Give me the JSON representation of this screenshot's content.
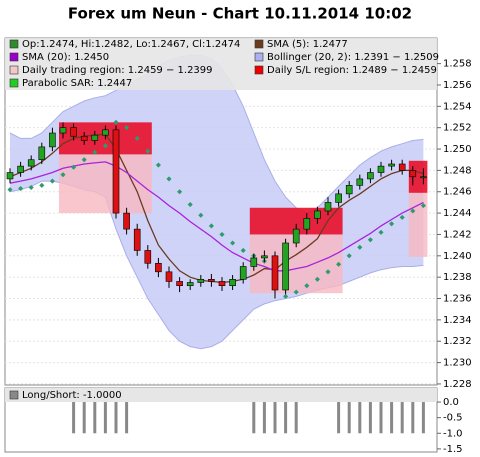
{
  "chart_data": {
    "type": "candlestick",
    "title": "Forex um Neun - Chart 10.11.2014 10:02",
    "ylim": [
      1.2279,
      1.2604
    ],
    "yticks": [
      1.228,
      {
        "value": 1.23,
        "label": "1.230"
      },
      1.232,
      1.234,
      1.236,
      1.238,
      {
        "value": 1.24,
        "label": "1.240"
      },
      1.242,
      1.244,
      1.246,
      1.248,
      {
        "value": 1.25,
        "label": "1.250"
      },
      1.252,
      1.254,
      1.256,
      1.258
    ],
    "legend": [
      {
        "label": "Op:1.2474, Hi:1.2482, Lo:1.2467, Cl:1.2474",
        "color": "#2e8b2e"
      },
      {
        "label": "SMA (5): 1.2477",
        "color": "#6b3a1e"
      },
      {
        "label": "SMA (20): 1.2450",
        "color": "#9900cc"
      },
      {
        "label": "Bollinger (20, 2): 1.2391 − 1.2509",
        "color": "#aab0f0"
      },
      {
        "label": "Daily trading region: 1.2459 − 1.2399",
        "color": "#f5c8c8"
      },
      {
        "label": "Daily S/L region: 1.2489 − 1.2459",
        "color": "#ee0000"
      },
      {
        "label": "Parabolic SAR: 1.2447",
        "color": "#22cc22"
      }
    ],
    "up_color": "#22a322",
    "down_color": "#dd1111",
    "open": [
      1.2472,
      1.2478,
      1.2484,
      1.249,
      1.2502,
      1.2515,
      1.252,
      1.2512,
      1.2508,
      1.2513,
      1.2518,
      1.244,
      1.2425,
      1.2405,
      1.2393,
      1.2385,
      1.2376,
      1.2372,
      1.2375,
      1.2378,
      1.2376,
      1.2372,
      1.2378,
      1.239,
      1.2398,
      1.24,
      1.2368,
      1.2412,
      1.2425,
      1.2435,
      1.2442,
      1.245,
      1.2458,
      1.2466,
      1.2472,
      1.2478,
      1.2484,
      1.2486,
      1.248,
      1.2474
    ],
    "high": [
      1.2482,
      1.2488,
      1.2494,
      1.2506,
      1.252,
      1.2525,
      1.2524,
      1.2516,
      1.2517,
      1.2522,
      1.2522,
      1.2445,
      1.243,
      1.241,
      1.2398,
      1.239,
      1.238,
      1.2378,
      1.2382,
      1.2383,
      1.238,
      1.2382,
      1.2394,
      1.2402,
      1.2405,
      1.2404,
      1.2416,
      1.243,
      1.244,
      1.2446,
      1.2455,
      1.2462,
      1.247,
      1.2476,
      1.2482,
      1.2488,
      1.249,
      1.249,
      1.2484,
      1.2482
    ],
    "low": [
      1.2468,
      1.2474,
      1.248,
      1.2486,
      1.2498,
      1.251,
      1.2508,
      1.2504,
      1.2504,
      1.2509,
      1.2435,
      1.242,
      1.24,
      1.2388,
      1.238,
      1.237,
      1.2366,
      1.2368,
      1.2371,
      1.2371,
      1.2367,
      1.2368,
      1.2374,
      1.2386,
      1.2394,
      1.236,
      1.2364,
      1.2408,
      1.242,
      1.243,
      1.2438,
      1.2446,
      1.2454,
      1.2462,
      1.2468,
      1.2474,
      1.248,
      1.2476,
      1.2466,
      1.2467
    ],
    "close": [
      1.2478,
      1.2484,
      1.249,
      1.2502,
      1.2515,
      1.252,
      1.2512,
      1.2508,
      1.2513,
      1.2518,
      1.244,
      1.2425,
      1.2405,
      1.2393,
      1.2385,
      1.2376,
      1.2372,
      1.2375,
      1.2378,
      1.2376,
      1.2372,
      1.2378,
      1.239,
      1.2398,
      1.24,
      1.2368,
      1.2412,
      1.2425,
      1.2435,
      1.2442,
      1.245,
      1.2458,
      1.2466,
      1.2472,
      1.2478,
      1.2484,
      1.2486,
      1.248,
      1.2474,
      1.2474
    ],
    "lines": [
      {
        "name": "SMA (5)",
        "color": "#6b3a1e",
        "values": [
          1.2474,
          1.2478,
          1.2482,
          1.2488,
          1.2496,
          1.2505,
          1.251,
          1.2512,
          1.2513,
          1.2514,
          1.25,
          1.248,
          1.246,
          1.2433,
          1.241,
          1.2397,
          1.2386,
          1.238,
          1.2377,
          1.2376,
          1.2375,
          1.2376,
          1.2378,
          1.2382,
          1.2388,
          1.2387,
          1.2395,
          1.2401,
          1.2408,
          1.2416,
          1.2433,
          1.2445,
          1.2452,
          1.2458,
          1.2465,
          1.2472,
          1.2477,
          1.248,
          1.248,
          1.2477
        ]
      },
      {
        "name": "SMA (20)",
        "color": "#aa22dd",
        "values": [
          1.2468,
          1.247,
          1.2472,
          1.2475,
          1.2478,
          1.2482,
          1.2484,
          1.2486,
          1.2487,
          1.2488,
          1.2484,
          1.2478,
          1.247,
          1.2462,
          1.2455,
          1.2447,
          1.244,
          1.2432,
          1.2425,
          1.2418,
          1.241,
          1.2403,
          1.2398,
          1.2393,
          1.239,
          1.2386,
          1.2386,
          1.2388,
          1.239,
          1.2394,
          1.2398,
          1.2403,
          1.2409,
          1.2415,
          1.2421,
          1.2428,
          1.2434,
          1.244,
          1.2445,
          1.245
        ]
      }
    ],
    "bollinger": {
      "color": "#c8cbf7",
      "upper": [
        1.2515,
        1.251,
        1.251,
        1.2515,
        1.2525,
        1.2535,
        1.254,
        1.2545,
        1.2548,
        1.255,
        1.2555,
        1.256,
        1.2565,
        1.257,
        1.2578,
        1.2583,
        1.2586,
        1.2588,
        1.2588,
        1.2585,
        1.2575,
        1.256,
        1.254,
        1.2515,
        1.249,
        1.247,
        1.2455,
        1.2445,
        1.244,
        1.2445,
        1.2455,
        1.2465,
        1.2475,
        1.2485,
        1.2492,
        1.2498,
        1.2502,
        1.2505,
        1.2508,
        1.2509
      ],
      "lower": [
        1.246,
        1.2462,
        1.2465,
        1.247,
        1.247,
        1.2468,
        1.2465,
        1.2462,
        1.246,
        1.2455,
        1.2425,
        1.24,
        1.238,
        1.236,
        1.2345,
        1.233,
        1.232,
        1.2315,
        1.2313,
        1.2315,
        1.232,
        1.233,
        1.234,
        1.235,
        1.2355,
        1.2358,
        1.236,
        1.2362,
        1.2365,
        1.2368,
        1.237,
        1.2372,
        1.2376,
        1.238,
        1.2384,
        1.2387,
        1.2389,
        1.239,
        1.239,
        1.2391
      ]
    },
    "sar": {
      "color": "#2e9b6e",
      "values": [
        1.2462,
        1.2463,
        1.2464,
        1.2466,
        1.247,
        1.2476,
        1.2483,
        1.249,
        1.2497,
        1.2503,
        1.2525,
        1.252,
        1.251,
        1.2498,
        1.2485,
        1.2472,
        1.246,
        1.2448,
        1.2438,
        1.2428,
        1.242,
        1.2412,
        1.2405,
        1.24,
        1.2395,
        1.239,
        1.2362,
        1.2366,
        1.2372,
        1.2378,
        1.2385,
        1.2392,
        1.24,
        1.2408,
        1.2415,
        1.2422,
        1.243,
        1.2436,
        1.2442,
        1.2447
      ]
    },
    "regions": [
      {
        "from": 5,
        "to": 13,
        "sl": [
          1.2525,
          1.2495
        ],
        "trade": [
          1.2495,
          1.244
        ]
      },
      {
        "from": 23,
        "to": 31,
        "sl": [
          1.2445,
          1.242
        ],
        "trade": [
          1.242,
          1.2365
        ]
      },
      {
        "from": 38,
        "to": 39,
        "sl": [
          1.2489,
          1.2459
        ],
        "trade": [
          1.2459,
          1.2399
        ]
      }
    ],
    "sl_color": "#e8102a",
    "trade_color": "#f7b8c0",
    "lower_panel": {
      "label": "Long/Short: -1.0000",
      "color": "#888888",
      "ylim": [
        -1.6,
        0.45
      ],
      "yticks": [
        {
          "value": 0,
          "label": "0.0"
        },
        -0.5,
        {
          "value": -1,
          "label": "-1.0"
        },
        -1.5
      ],
      "values": [
        0,
        0,
        0,
        0,
        0,
        0,
        -1,
        -1,
        -1,
        -1,
        -1,
        -1,
        0,
        0,
        0,
        0,
        0,
        0,
        0,
        0,
        0,
        0,
        0,
        -1,
        -1,
        -1,
        -1,
        -1,
        0,
        0,
        0,
        -1,
        -1,
        -1,
        -1,
        -1,
        -1,
        -1,
        -1,
        -1
      ]
    }
  }
}
